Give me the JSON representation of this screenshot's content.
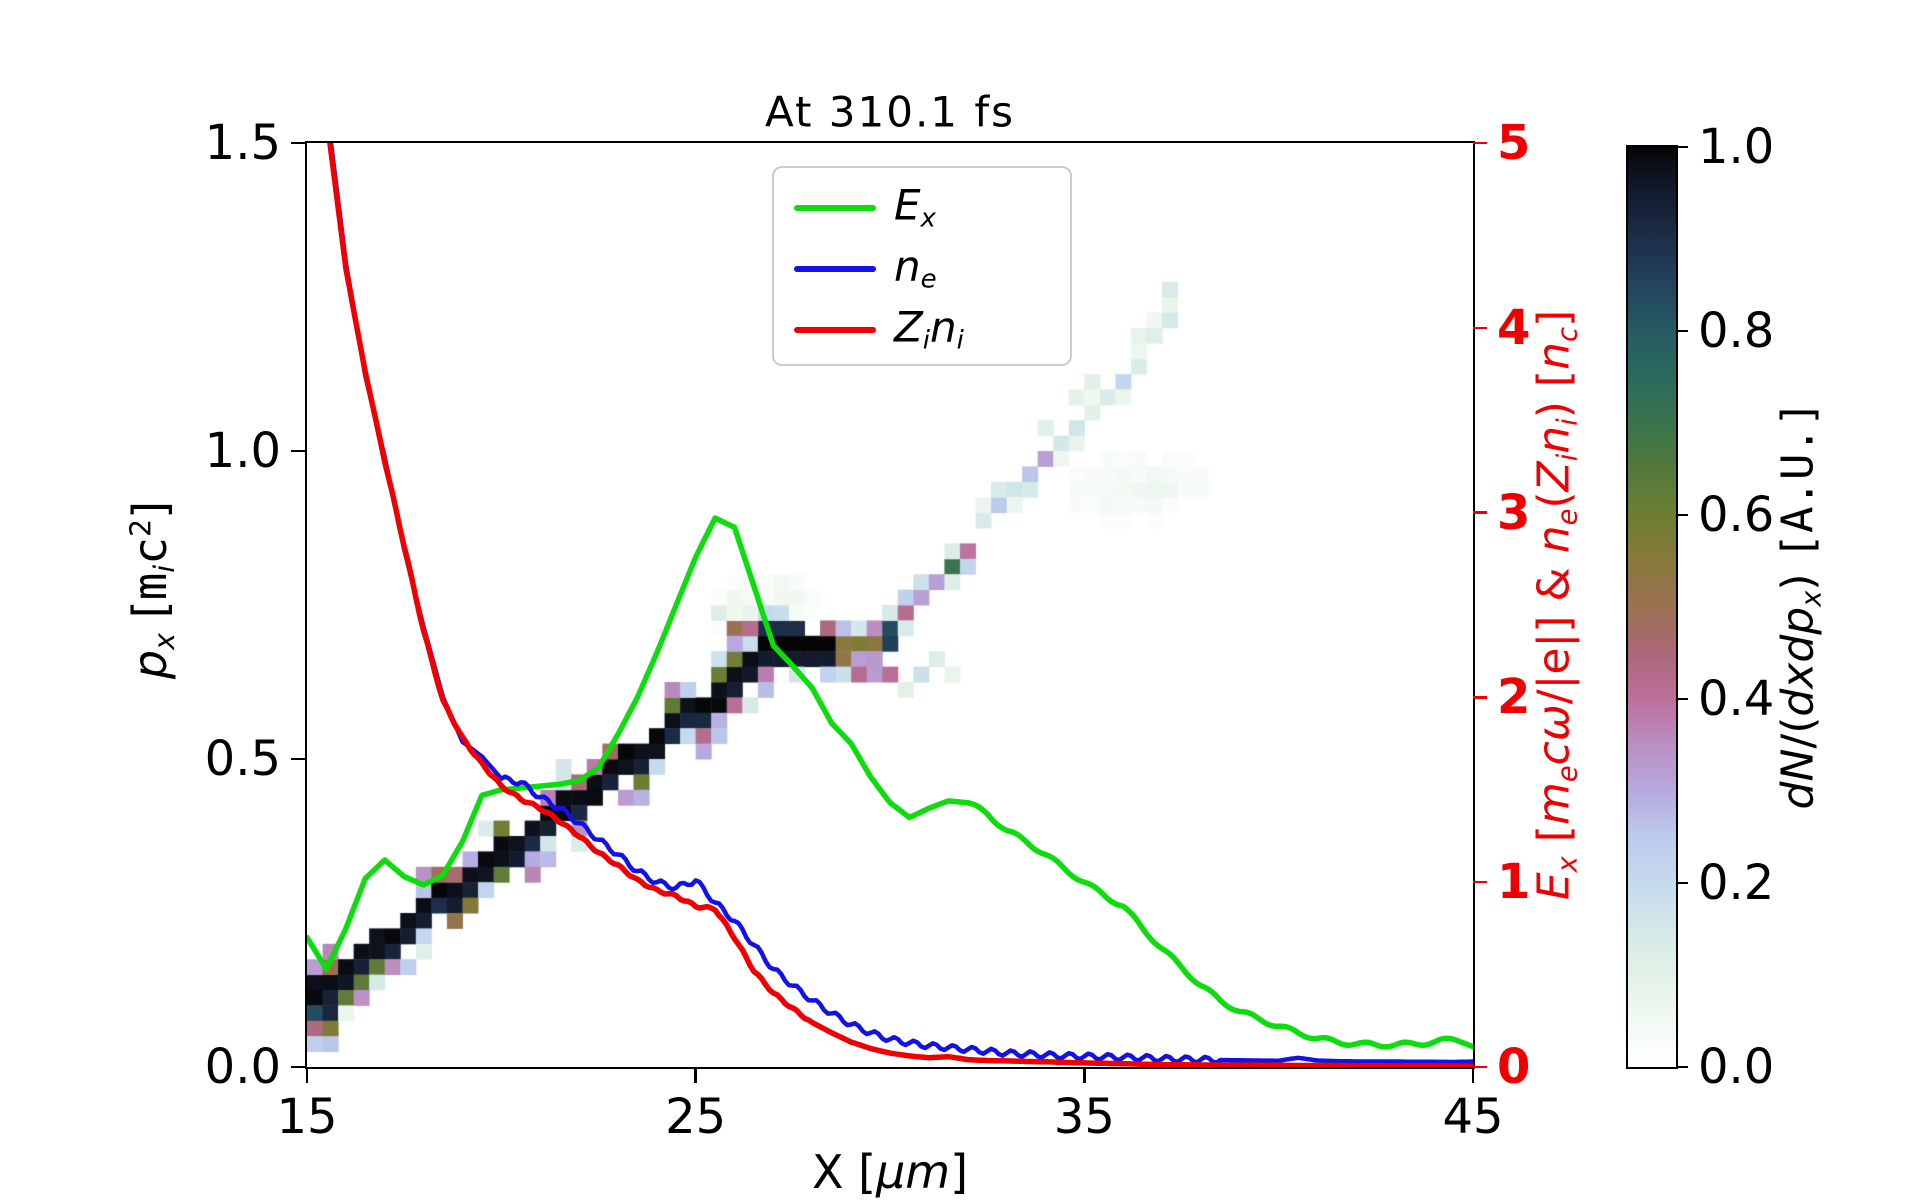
{
  "title": "At 310.1 fs",
  "axes": {
    "x": {
      "range": [
        15,
        45
      ],
      "ticks": [
        {
          "value": 15,
          "label": "15"
        },
        {
          "value": 25,
          "label": "25"
        },
        {
          "value": 35,
          "label": "35"
        },
        {
          "value": 45,
          "label": "45"
        }
      ],
      "label_segments": [
        [
          "X ",
          "plain"
        ],
        [
          "[",
          "plain"
        ],
        [
          "μm",
          "it"
        ],
        [
          "]",
          "plain"
        ]
      ]
    },
    "y_left": {
      "range": [
        0,
        1.5
      ],
      "ticks": [
        {
          "value": 0,
          "label": "0.0"
        },
        {
          "value": 0.5,
          "label": "0.5"
        },
        {
          "value": 1.0,
          "label": "1.0"
        },
        {
          "value": 1.5,
          "label": "1.5"
        }
      ],
      "label_segments": [
        [
          "p",
          "it"
        ],
        [
          "x",
          "sub it"
        ],
        [
          " [",
          "plain"
        ],
        [
          "m",
          "mono"
        ],
        [
          "i",
          "sub it"
        ],
        [
          "c",
          "mono"
        ],
        [
          "2",
          "sup"
        ],
        [
          "]",
          "plain"
        ]
      ]
    },
    "y_right": {
      "range": [
        0,
        5
      ],
      "color": "#f00000",
      "ticks": [
        {
          "value": 0,
          "label": "0"
        },
        {
          "value": 1,
          "label": "1"
        },
        {
          "value": 2,
          "label": "2"
        },
        {
          "value": 3,
          "label": "3"
        },
        {
          "value": 4,
          "label": "4"
        },
        {
          "value": 5,
          "label": "5"
        }
      ],
      "label_segments": [
        [
          "E",
          "it"
        ],
        [
          "x",
          "sub it"
        ],
        [
          " [",
          "plain"
        ],
        [
          "m",
          "it"
        ],
        [
          "e",
          "sub it"
        ],
        [
          "c",
          "it"
        ],
        [
          "ω",
          "it"
        ],
        [
          "/|e|] & ",
          "plain"
        ],
        [
          "n",
          "it"
        ],
        [
          "e",
          "sub it"
        ],
        [
          "(",
          "plain"
        ],
        [
          "Z",
          "it"
        ],
        [
          "i",
          "sub it"
        ],
        [
          "n",
          "it"
        ],
        [
          "i",
          "sub it"
        ],
        [
          ") [",
          "plain"
        ],
        [
          "n",
          "it"
        ],
        [
          "c",
          "sub it"
        ],
        [
          "]",
          "plain"
        ]
      ]
    },
    "colorbar": {
      "range": [
        0,
        1
      ],
      "ticks": [
        {
          "value": 0,
          "label": "0.0"
        },
        {
          "value": 0.2,
          "label": "0.2"
        },
        {
          "value": 0.4,
          "label": "0.4"
        },
        {
          "value": 0.6,
          "label": "0.6"
        },
        {
          "value": 0.8,
          "label": "0.8"
        },
        {
          "value": 1.0,
          "label": "1.0"
        }
      ],
      "label_segments": [
        [
          "dN",
          "it"
        ],
        [
          "/(",
          "plain"
        ],
        [
          "dxdp",
          "it"
        ],
        [
          "x",
          "sub it"
        ],
        [
          ") ",
          "plain"
        ],
        [
          "[A.U.]",
          "mono"
        ]
      ]
    }
  },
  "legend": {
    "entries": [
      {
        "name": "Ex",
        "color": "#0ddd0d",
        "segments": [
          [
            "E",
            "it"
          ],
          [
            "x",
            "sub it"
          ]
        ]
      },
      {
        "name": "ne",
        "color": "#1212e6",
        "segments": [
          [
            "n",
            "it"
          ],
          [
            "e",
            "sub it"
          ]
        ]
      },
      {
        "name": "Zini",
        "color": "#f00000",
        "segments": [
          [
            "Z",
            "it"
          ],
          [
            "i",
            "sub it"
          ],
          [
            "n",
            "it"
          ],
          [
            "i",
            "sub it"
          ]
        ]
      }
    ]
  },
  "colors": {
    "green": "#0ddd0d",
    "blue": "#1212e6",
    "red": "#f00000",
    "frame": "#000000",
    "legend_border": "#cccccc"
  },
  "chart_data": {
    "type": "line+heatmap",
    "title": "At 310.1 fs",
    "xlabel": "X [um]",
    "ylabel_left": "p_x [m_i c^2]",
    "ylabel_right": "E_x [m_e c w/|e|] & n_e(Z_i n_i) [n_c]",
    "x_range": [
      15,
      45
    ],
    "y_left_range": [
      0,
      1.5
    ],
    "y_right_range": [
      0,
      5
    ],
    "series": [
      {
        "name": "E_x",
        "axis": "right",
        "color": "#0ddd0d",
        "width": 5.5,
        "wiggle": {
          "amp": 0.012,
          "period": 1.0,
          "from": 32,
          "to": 44.5
        },
        "points": [
          [
            15,
            0.7
          ],
          [
            15.5,
            0.53
          ],
          [
            16,
            0.75
          ],
          [
            16.5,
            1.02
          ],
          [
            17,
            1.12
          ],
          [
            17.5,
            1.03
          ],
          [
            18,
            0.985
          ],
          [
            18.5,
            1.04
          ],
          [
            19,
            1.22
          ],
          [
            19.5,
            1.47
          ],
          [
            20,
            1.5
          ],
          [
            20.5,
            1.51
          ],
          [
            21,
            1.52
          ],
          [
            21.5,
            1.53
          ],
          [
            22,
            1.55
          ],
          [
            22.5,
            1.62
          ],
          [
            23,
            1.8
          ],
          [
            23.5,
            2.0
          ],
          [
            24,
            2.24
          ],
          [
            24.5,
            2.5
          ],
          [
            25,
            2.76
          ],
          [
            25.5,
            2.97
          ],
          [
            26,
            2.92
          ],
          [
            26.5,
            2.6
          ],
          [
            27,
            2.28
          ],
          [
            27.5,
            2.17
          ],
          [
            28,
            2.05
          ],
          [
            28.5,
            1.86
          ],
          [
            29,
            1.75
          ],
          [
            29.5,
            1.57
          ],
          [
            30,
            1.43
          ],
          [
            30.5,
            1.35
          ],
          [
            31,
            1.4
          ],
          [
            31.5,
            1.44
          ],
          [
            32,
            1.43
          ],
          [
            32.5,
            1.37
          ],
          [
            33,
            1.28
          ],
          [
            33.5,
            1.22
          ],
          [
            34,
            1.15
          ],
          [
            34.5,
            1.07
          ],
          [
            35,
            1.0
          ],
          [
            35.5,
            0.93
          ],
          [
            36,
            0.87
          ],
          [
            36.5,
            0.75
          ],
          [
            37,
            0.64
          ],
          [
            37.5,
            0.54
          ],
          [
            38,
            0.44
          ],
          [
            38.5,
            0.36
          ],
          [
            39,
            0.3
          ],
          [
            39.5,
            0.26
          ],
          [
            40,
            0.22
          ],
          [
            40.5,
            0.185
          ],
          [
            41,
            0.155
          ],
          [
            41.5,
            0.135
          ],
          [
            42,
            0.125
          ],
          [
            42.5,
            0.12
          ],
          [
            43,
            0.12
          ],
          [
            43.5,
            0.125
          ],
          [
            44,
            0.135
          ],
          [
            44.5,
            0.15
          ],
          [
            45,
            0.11
          ]
        ]
      },
      {
        "name": "n_e",
        "axis": "right",
        "color": "#1212e6",
        "width": 4.5,
        "wiggle": {
          "amp": 0.016,
          "period": 0.5,
          "from": 20,
          "to": 38.5
        },
        "points": [
          [
            15,
            6.9
          ],
          [
            15.5,
            5.2
          ],
          [
            16,
            4.35
          ],
          [
            16.5,
            3.74
          ],
          [
            17,
            3.3
          ],
          [
            17.5,
            2.8
          ],
          [
            18,
            2.38
          ],
          [
            18.5,
            2.0
          ],
          [
            19,
            1.76
          ],
          [
            19.5,
            1.68
          ],
          [
            20,
            1.56
          ],
          [
            20.5,
            1.54
          ],
          [
            21,
            1.46
          ],
          [
            21.5,
            1.4
          ],
          [
            22,
            1.32
          ],
          [
            22.5,
            1.23
          ],
          [
            23,
            1.15
          ],
          [
            23.5,
            1.06
          ],
          [
            24,
            1.0
          ],
          [
            24.5,
            0.97
          ],
          [
            25,
            1.01
          ],
          [
            25.5,
            0.89
          ],
          [
            26,
            0.79
          ],
          [
            26.5,
            0.66
          ],
          [
            27,
            0.53
          ],
          [
            27.5,
            0.44
          ],
          [
            28,
            0.36
          ],
          [
            28.5,
            0.29
          ],
          [
            29,
            0.23
          ],
          [
            29.5,
            0.185
          ],
          [
            30,
            0.15
          ],
          [
            30.5,
            0.13
          ],
          [
            31,
            0.115
          ],
          [
            31.5,
            0.105
          ],
          [
            32,
            0.095
          ],
          [
            32.5,
            0.085
          ],
          [
            33,
            0.075
          ],
          [
            33.5,
            0.07
          ],
          [
            34,
            0.065
          ],
          [
            34.5,
            0.06
          ],
          [
            35,
            0.058
          ],
          [
            35.5,
            0.055
          ],
          [
            36,
            0.052
          ],
          [
            36.5,
            0.05
          ],
          [
            37,
            0.045
          ],
          [
            37.5,
            0.042
          ],
          [
            38,
            0.04
          ],
          [
            38.5,
            0.038
          ],
          [
            39,
            0.036
          ],
          [
            39.5,
            0.035
          ],
          [
            40,
            0.034
          ],
          [
            40.5,
            0.05
          ],
          [
            41,
            0.035
          ],
          [
            41.5,
            0.032
          ],
          [
            42,
            0.03
          ],
          [
            42.5,
            0.03
          ],
          [
            43,
            0.03
          ],
          [
            43.5,
            0.028
          ],
          [
            44,
            0.028
          ],
          [
            44.5,
            0.027
          ],
          [
            45,
            0.03
          ]
        ]
      },
      {
        "name": "Z_i n_i",
        "axis": "right",
        "color": "#f00000",
        "width": 5.5,
        "wiggle": {
          "amp": 0.007,
          "period": 0.45,
          "from": 17,
          "to": 28
        },
        "points": [
          [
            15,
            6.8
          ],
          [
            15.5,
            5.15
          ],
          [
            16,
            4.32
          ],
          [
            16.5,
            3.76
          ],
          [
            17,
            3.28
          ],
          [
            17.5,
            2.82
          ],
          [
            18,
            2.36
          ],
          [
            18.5,
            1.98
          ],
          [
            19,
            1.78
          ],
          [
            19.5,
            1.64
          ],
          [
            20,
            1.52
          ],
          [
            20.5,
            1.45
          ],
          [
            21,
            1.4
          ],
          [
            21.5,
            1.33
          ],
          [
            22,
            1.25
          ],
          [
            22.5,
            1.16
          ],
          [
            23,
            1.09
          ],
          [
            23.5,
            1.01
          ],
          [
            24,
            0.955
          ],
          [
            24.5,
            0.925
          ],
          [
            25,
            0.87
          ],
          [
            25.5,
            0.855
          ],
          [
            26,
            0.7
          ],
          [
            26.5,
            0.52
          ],
          [
            27,
            0.4
          ],
          [
            27.5,
            0.315
          ],
          [
            28,
            0.24
          ],
          [
            28.5,
            0.185
          ],
          [
            29,
            0.135
          ],
          [
            29.5,
            0.1
          ],
          [
            30,
            0.075
          ],
          [
            30.5,
            0.06
          ],
          [
            31,
            0.05
          ],
          [
            31.5,
            0.056
          ],
          [
            32,
            0.04
          ],
          [
            32.5,
            0.035
          ],
          [
            33,
            0.033
          ],
          [
            33.5,
            0.03
          ],
          [
            34,
            0.028
          ],
          [
            34.5,
            0.025
          ],
          [
            35,
            0.022
          ],
          [
            35.5,
            0.02
          ],
          [
            36,
            0.018
          ],
          [
            36.5,
            0.015
          ],
          [
            37,
            0.013
          ],
          [
            37.5,
            0.012
          ],
          [
            38,
            0.011
          ],
          [
            38.5,
            0.01
          ],
          [
            39,
            0.01
          ],
          [
            39.5,
            0.009
          ],
          [
            40,
            0.009
          ],
          [
            40.5,
            0.008
          ],
          [
            41,
            0.008
          ],
          [
            41.5,
            0.008
          ],
          [
            42,
            0.007
          ],
          [
            42.5,
            0.007
          ],
          [
            43,
            0.006
          ],
          [
            43.5,
            0.006
          ],
          [
            44,
            0.006
          ],
          [
            44.5,
            0.005
          ],
          [
            45,
            0.005
          ]
        ]
      }
    ],
    "heatmap": {
      "quantity": "dN/(dxdp_x) [A.U.]",
      "value_range": [
        0,
        1
      ],
      "cell_dx": 0.4,
      "cell_dp": 0.025,
      "bands": [
        {
          "name": "main-accelerated-band",
          "x0": 15.0,
          "p0": 0.12,
          "x1": 26.8,
          "p1": 0.675,
          "style": "solid-black",
          "fringe_prob": 0.55
        },
        {
          "name": "flat-segment",
          "x0": 26.8,
          "p0": 0.675,
          "x1": 29.9,
          "p1": 0.685,
          "style": "solid-taper",
          "fringe_prob": 0.7
        },
        {
          "name": "dispersed-tail",
          "x0": 29.9,
          "p0": 0.705,
          "x1": 37.3,
          "p1": 1.21,
          "style": "speckle",
          "fade": 0.5,
          "dark_until": 31.9
        }
      ],
      "clouds": [
        {
          "cx": 26.8,
          "cp": 0.745,
          "rx": 1.1,
          "rp": 0.055,
          "density": 0.07
        },
        {
          "cx": 36.4,
          "cp": 0.94,
          "rx": 1.8,
          "rp": 0.055,
          "density": 0.05
        }
      ],
      "extra_cells": [
        [
          26.1,
          0.71,
          0.5
        ],
        [
          26.5,
          0.715,
          0.42
        ],
        [
          25.9,
          0.7,
          0.3
        ],
        [
          25.7,
          0.74,
          0.12
        ],
        [
          30.6,
          0.645,
          0.18
        ],
        [
          31.0,
          0.66,
          0.12
        ],
        [
          31.4,
          0.63,
          0.08
        ],
        [
          30.2,
          0.62,
          0.1
        ]
      ],
      "palette_stops": [
        [
          0.0,
          "#ffffff"
        ],
        [
          0.05,
          "#f2f9f3"
        ],
        [
          0.1,
          "#e3f1e8"
        ],
        [
          0.15,
          "#d4e8e9"
        ],
        [
          0.2,
          "#c5daed"
        ],
        [
          0.25,
          "#bccaec"
        ],
        [
          0.3,
          "#b7a9e0"
        ],
        [
          0.35,
          "#bb8ec2"
        ],
        [
          0.4,
          "#bb6f9b"
        ],
        [
          0.45,
          "#ab6877"
        ],
        [
          0.5,
          "#9b7152"
        ],
        [
          0.55,
          "#87793a"
        ],
        [
          0.6,
          "#6d7e33"
        ],
        [
          0.65,
          "#52793b"
        ],
        [
          0.7,
          "#39744f"
        ],
        [
          0.75,
          "#2b6a5d"
        ],
        [
          0.8,
          "#265b63"
        ],
        [
          0.85,
          "#22445c"
        ],
        [
          0.9,
          "#1d2e49"
        ],
        [
          0.95,
          "#131b2e"
        ],
        [
          1.0,
          "#050505"
        ]
      ]
    }
  }
}
